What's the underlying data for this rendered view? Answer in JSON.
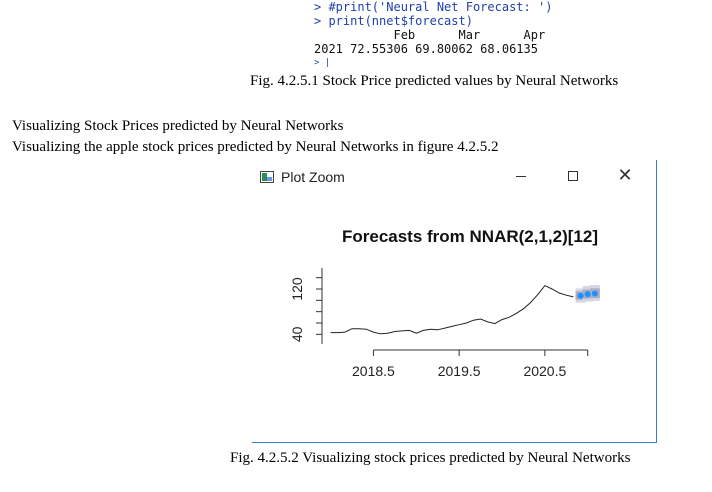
{
  "console": {
    "lines": [
      "> #print('Neural Net Forecast: ')",
      "> print(nnet$forecast)",
      "           Feb      Mar      Apr",
      "2021 72.55306 69.80062 68.06135"
    ],
    "tail": "> |"
  },
  "figure1_caption": "Fig. 4.2.5.1 Stock Price predicted values by Neural Networks",
  "section_heading": "Visualizing Stock Prices predicted by Neural Networks",
  "section_text": "Visualizing the apple stock prices predicted by Neural Networks in figure 4.2.5.2",
  "window": {
    "title": "Plot Zoom",
    "controls": {
      "minimize": "minimize",
      "maximize": "maximize",
      "close": "✕"
    }
  },
  "figure2_caption": "Fig. 4.2.5.2 Visualizing stock prices predicted by Neural Networks",
  "chart_data": {
    "type": "line",
    "title": "Forecasts from NNAR(2,1,2)[12]",
    "xlabel": "",
    "ylabel": "",
    "x_ticks": [
      2018.5,
      2019.5,
      2020.5
    ],
    "y_ticks": [
      40,
      120
    ],
    "xlim": [
      2017.9,
      2021.4
    ],
    "ylim": [
      30,
      150
    ],
    "series": [
      {
        "x": [
          2018.0,
          2018.083,
          2018.167,
          2018.25,
          2018.333,
          2018.417,
          2018.5,
          2018.583,
          2018.667,
          2018.75,
          2018.833,
          2018.917,
          2019.0,
          2019.083,
          2019.167,
          2019.25,
          2019.333,
          2019.417,
          2019.5,
          2019.583,
          2019.667,
          2019.75,
          2019.833,
          2019.917,
          2020.0,
          2020.083,
          2020.167,
          2020.25,
          2020.333,
          2020.417,
          2020.5,
          2020.583,
          2020.667,
          2020.75,
          2020.833
        ],
        "values": [
          43,
          43,
          44,
          50,
          50,
          49,
          44,
          41,
          42,
          45,
          46,
          47,
          42,
          47,
          49,
          48,
          51,
          54,
          57,
          60,
          65,
          67,
          62,
          59,
          66,
          70,
          77,
          85,
          96,
          110,
          126,
          120,
          113,
          109,
          106
        ]
      }
    ],
    "forecast": {
      "x": [
        2020.917,
        2021.0,
        2021.083
      ],
      "values": [
        108,
        111,
        112
      ],
      "interval_80": [
        [
          101,
          116
        ],
        [
          103,
          119
        ],
        [
          104,
          121
        ]
      ],
      "interval_95": [
        [
          96,
          121
        ],
        [
          98,
          125
        ],
        [
          99,
          127
        ]
      ]
    }
  }
}
